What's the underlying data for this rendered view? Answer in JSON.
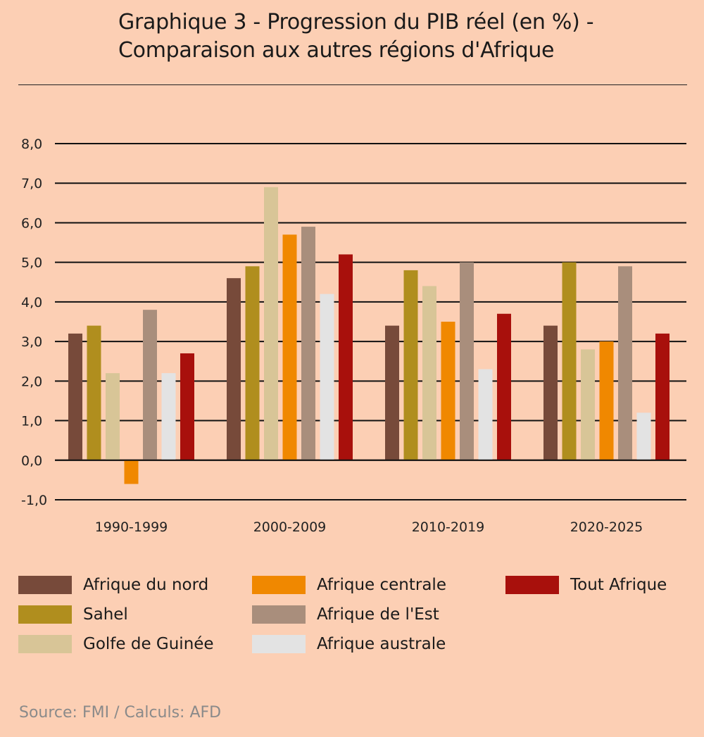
{
  "chart_data": {
    "type": "bar",
    "title_line1": "Graphique 3 - Progression du PIB réel (en %) -",
    "title_line2": "Comparaison aux autres régions d'Afrique",
    "categories": [
      "1990-1999",
      "2000-2009",
      "2010-2019",
      "2020-2025"
    ],
    "ylim": [
      -1,
      8
    ],
    "yticks": [
      "-1,0",
      "0,0",
      "1,0",
      "2,0",
      "3,0",
      "4,0",
      "5,0",
      "6,0",
      "7,0",
      "8,0"
    ],
    "grid": true,
    "legend_position": "bottom",
    "series": [
      {
        "name": "Afrique du nord",
        "color": "#774a3a",
        "values": [
          3.2,
          4.6,
          3.4,
          3.4
        ]
      },
      {
        "name": "Sahel",
        "color": "#b08e1e",
        "values": [
          3.4,
          4.9,
          4.8,
          5.0
        ]
      },
      {
        "name": "Golfe de Guinée",
        "color": "#d8c597",
        "values": [
          2.2,
          6.9,
          4.4,
          2.8
        ]
      },
      {
        "name": "Afrique centrale",
        "color": "#f08800",
        "values": [
          -0.6,
          5.7,
          3.5,
          3.0
        ]
      },
      {
        "name": "Afrique de l'Est",
        "color": "#a98e7c",
        "values": [
          3.8,
          5.9,
          5.0,
          4.9
        ]
      },
      {
        "name": "Afrique australe",
        "color": "#e3e3e3",
        "values": [
          2.2,
          4.2,
          2.3,
          1.2
        ]
      },
      {
        "name": "Tout Afrique",
        "color": "#a8100c",
        "values": [
          2.7,
          5.2,
          3.7,
          3.2
        ]
      }
    ],
    "source": "Source: FMI / Calculs: AFD"
  }
}
